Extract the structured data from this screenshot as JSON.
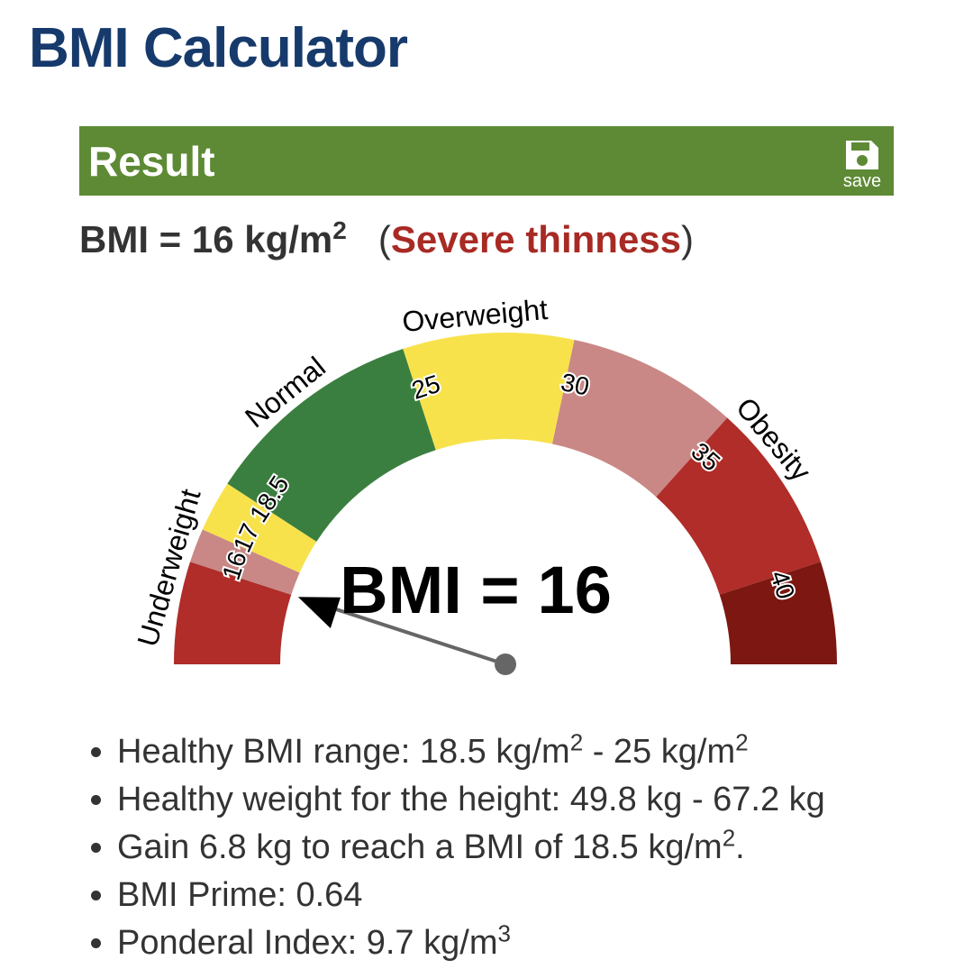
{
  "header": {
    "title": "BMI Calculator"
  },
  "result": {
    "heading": "Result",
    "save_label": "save",
    "bmi_text": "BMI = 16 kg/m",
    "bmi_sup": "2",
    "open": "(",
    "category": "Severe thinness",
    "close": ")"
  },
  "gauge": {
    "min": 13,
    "max": 43,
    "value": 16,
    "center_label": "BMI =",
    "bands": [
      {
        "from": 13,
        "to": 16,
        "color": "#b02d29"
      },
      {
        "from": 16,
        "to": 17,
        "color": "#c98886"
      },
      {
        "from": 17,
        "to": 18.5,
        "color": "#f8e24b"
      },
      {
        "from": 18.5,
        "to": 25,
        "color": "#3a7f3f"
      },
      {
        "from": 25,
        "to": 30,
        "color": "#f8e24b"
      },
      {
        "from": 30,
        "to": 35,
        "color": "#c98886"
      },
      {
        "from": 35,
        "to": 40,
        "color": "#b02d29"
      },
      {
        "from": 40,
        "to": 43,
        "color": "#7c1711"
      }
    ],
    "ticks": [
      16,
      17,
      18.5,
      25,
      30,
      35,
      40
    ],
    "zone_labels": [
      "Underweight",
      "Normal",
      "Overweight",
      "Obesity"
    ]
  },
  "details": {
    "items": [
      [
        {
          "text": "Healthy BMI range: 18.5 kg/m"
        },
        {
          "sup": "2"
        },
        {
          "text": " - 25 kg/m"
        },
        {
          "sup": "2"
        }
      ],
      [
        {
          "text": "Healthy weight for the height: 49.8 kg - 67.2 kg"
        }
      ],
      [
        {
          "text": "Gain 6.8 kg to reach a BMI of 18.5 kg/m"
        },
        {
          "sup": "2"
        },
        {
          "text": "."
        }
      ],
      [
        {
          "text": "BMI Prime: 0.64"
        }
      ],
      [
        {
          "text": "Ponderal Index: 9.7 kg/m"
        },
        {
          "sup": "3"
        }
      ]
    ]
  }
}
